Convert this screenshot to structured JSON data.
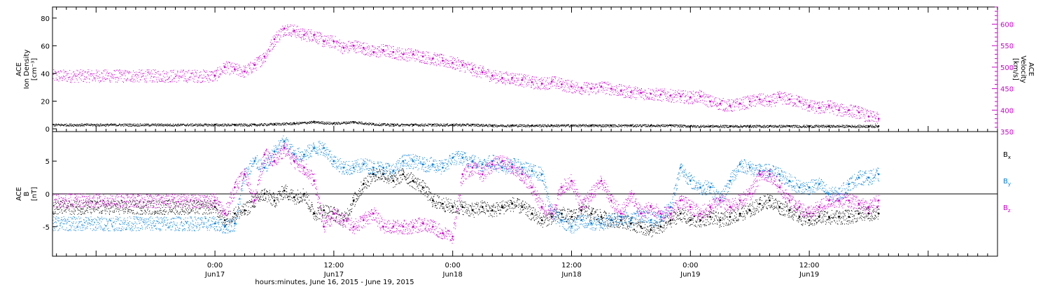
{
  "chart_data": [
    {
      "panel": "top",
      "type": "scatter",
      "left_axis": {
        "label_lines": [
          "ACE",
          "Ion Density",
          "[cm⁻³]"
        ],
        "ylim": [
          -2,
          88
        ],
        "ticks": [
          0,
          20,
          40,
          60,
          80
        ],
        "tick_labels": [
          "0",
          "20",
          "40",
          "60",
          "80"
        ]
      },
      "right_axis": {
        "label_lines": [
          "ACE",
          "Velocity",
          "[km/s]"
        ],
        "ylim": [
          350,
          640
        ],
        "ticks": [
          350,
          400,
          450,
          500,
          550,
          600
        ],
        "tick_labels": [
          "350",
          "400",
          "450",
          "500",
          "550",
          "600"
        ],
        "color": "#d000d0"
      },
      "series": [
        {
          "color": "#d000d0",
          "axis": "right",
          "x": [
            0,
            1,
            2,
            3,
            4,
            5,
            6,
            7,
            8,
            9,
            10,
            11,
            12,
            13,
            14,
            15,
            16,
            17,
            18,
            19,
            20,
            21,
            22,
            23,
            24,
            25,
            26,
            27,
            28,
            29,
            30,
            31,
            32,
            33,
            34,
            35,
            36,
            37,
            38,
            39,
            40,
            41,
            42,
            43,
            44,
            45,
            46,
            47,
            48,
            49,
            50,
            51,
            52,
            53,
            54,
            55,
            56,
            57,
            58,
            59,
            60,
            61,
            62,
            63,
            64,
            65,
            66,
            67
          ],
          "values": [
            480,
            500,
            495,
            490,
            505,
            525,
            565,
            590,
            585,
            575,
            575,
            560,
            560,
            545,
            550,
            545,
            535,
            540,
            535,
            530,
            530,
            525,
            520,
            515,
            510,
            505,
            495,
            488,
            480,
            475,
            475,
            470,
            465,
            462,
            466,
            460,
            455,
            452,
            450,
            455,
            450,
            445,
            442,
            440,
            438,
            436,
            434,
            432,
            430,
            432,
            420,
            415,
            410,
            415,
            420,
            425,
            420,
            430,
            425,
            420,
            410,
            405,
            410,
            400,
            400,
            395,
            385,
            380
          ]
        },
        {
          "color": "#000000",
          "axis": "left",
          "x": [
            0,
            2,
            4,
            6,
            8,
            10,
            12,
            14,
            16,
            18,
            20,
            22,
            24,
            26,
            28,
            30,
            32,
            34,
            36,
            38,
            40,
            42,
            44,
            46,
            48,
            50,
            52,
            54,
            56,
            58,
            60,
            62,
            64,
            66,
            67
          ],
          "values": [
            3,
            3,
            3,
            3.5,
            4,
            5,
            4,
            5,
            3.5,
            3,
            3,
            3,
            3,
            3,
            2.5,
            2.5,
            2.5,
            2.5,
            2.5,
            2.5,
            2.5,
            2.5,
            2.5,
            2.5,
            2,
            2,
            2,
            2,
            2,
            2,
            2,
            2,
            2,
            2,
            2
          ]
        }
      ]
    },
    {
      "panel": "bottom",
      "type": "scatter",
      "left_axis": {
        "label_lines": [
          "ACE",
          "B",
          "[nT]"
        ],
        "ylim": [
          -9.5,
          9.5
        ],
        "ticks": [
          -5,
          0,
          5
        ],
        "tick_labels": [
          "-5",
          "0",
          "5"
        ]
      },
      "legend": {
        "placement": "right",
        "entries": [
          {
            "label": "B",
            "sub": "x",
            "color": "#000000"
          },
          {
            "label": "B",
            "sub": "y",
            "color": "#0080e0"
          },
          {
            "label": "B",
            "sub": "z",
            "color": "#d000d0"
          }
        ]
      },
      "series": [
        {
          "key": "Bx",
          "color": "#000000",
          "x": [
            0,
            1,
            2,
            3,
            4,
            5,
            6,
            7,
            8,
            9,
            10,
            11,
            12,
            13,
            14,
            15,
            16,
            17,
            18,
            19,
            20,
            21,
            22,
            23,
            24,
            25,
            26,
            27,
            28,
            29,
            30,
            31,
            32,
            33,
            34,
            35,
            36,
            37,
            38,
            39,
            40,
            41,
            42,
            43,
            44,
            45,
            46,
            47,
            48,
            49,
            50,
            51,
            52,
            53,
            54,
            55,
            56,
            57,
            58,
            59,
            60,
            61,
            62,
            63,
            64,
            65,
            66,
            67
          ],
          "values": [
            -2,
            -4,
            -3,
            -2.5,
            -1,
            0,
            -1,
            0.5,
            -0.5,
            0,
            -3,
            -2.5,
            -3,
            -4,
            -1,
            1.5,
            3,
            3,
            2,
            3,
            2,
            1,
            -1,
            -1.5,
            -2,
            -2,
            -2.5,
            -2,
            -2.5,
            -2,
            -1.5,
            -2,
            -3,
            -4,
            -3.5,
            -3,
            -3.5,
            -2.5,
            -3,
            -3.5,
            -4,
            -4,
            -4.5,
            -5,
            -5.5,
            -5,
            -4,
            -3,
            -4,
            -4,
            -3.5,
            -4,
            -3.5,
            -3,
            -2.5,
            -1.5,
            -1,
            -2,
            -2.5,
            -3.5,
            -4,
            -3.5,
            -3.5,
            -3.5,
            -3.5,
            -3,
            -3,
            -3
          ]
        },
        {
          "key": "By",
          "color": "#0080e0",
          "x": [
            0,
            1,
            2,
            3,
            4,
            5,
            6,
            7,
            8,
            9,
            10,
            11,
            12,
            13,
            14,
            15,
            16,
            17,
            18,
            19,
            20,
            21,
            22,
            23,
            24,
            25,
            26,
            27,
            28,
            29,
            30,
            31,
            32,
            33,
            34,
            35,
            36,
            37,
            38,
            39,
            40,
            41,
            42,
            43,
            44,
            45,
            46,
            47,
            48,
            49,
            50,
            51,
            52,
            53,
            54,
            55,
            56,
            57,
            58,
            59,
            60,
            61,
            62,
            63,
            64,
            65,
            66,
            67
          ],
          "values": [
            -4.5,
            -5,
            -4.5,
            3,
            5,
            4,
            6.5,
            8,
            6,
            6,
            7,
            7,
            5,
            4,
            4,
            4.5,
            4,
            4,
            3.5,
            5,
            5,
            4.5,
            4.5,
            4,
            5.5,
            5.5,
            5,
            4.5,
            5,
            4,
            4.5,
            4,
            3.5,
            3,
            -3,
            -4,
            -5,
            -4,
            -4.5,
            -4.5,
            -4,
            -3.5,
            -4,
            -3,
            -4,
            -3.5,
            -2,
            4,
            2,
            1,
            1,
            -1,
            2,
            4.5,
            4,
            3.5,
            3.5,
            3,
            2,
            1,
            1,
            1.5,
            0,
            0,
            1.5,
            2.5,
            2.5,
            3
          ]
        },
        {
          "key": "Bz",
          "color": "#d000d0",
          "x": [
            0,
            1,
            2,
            3,
            4,
            5,
            6,
            7,
            8,
            9,
            10,
            11,
            12,
            13,
            14,
            15,
            16,
            17,
            18,
            19,
            20,
            21,
            22,
            23,
            24,
            25,
            26,
            27,
            28,
            29,
            30,
            31,
            32,
            33,
            34,
            35,
            36,
            37,
            38,
            39,
            40,
            41,
            42,
            43,
            44,
            45,
            46,
            47,
            48,
            49,
            50,
            51,
            52,
            53,
            54,
            55,
            56,
            57,
            58,
            59,
            60,
            61,
            62,
            63,
            64,
            65,
            66,
            67
          ],
          "values": [
            -1,
            -3,
            1,
            3,
            -1,
            6,
            5,
            7,
            5,
            4,
            2,
            -5,
            -3,
            -4,
            -5,
            -4,
            -3,
            -5,
            -5,
            -5,
            -5,
            -4.5,
            -5,
            -6,
            -6.5,
            3,
            4,
            3,
            4.5,
            5,
            4,
            3,
            1,
            -2,
            -3,
            1,
            2,
            -2,
            0,
            2,
            -1,
            -3,
            0,
            -3,
            -2,
            -3,
            -3,
            -1,
            -2,
            -3,
            -2,
            -1,
            -2,
            -1,
            0,
            3,
            3,
            1,
            -1,
            -2,
            -3,
            -2,
            -1,
            -1,
            -1,
            -1.5,
            -2,
            -1
          ]
        }
      ]
    }
  ],
  "x_axis": {
    "xlim": [
      -16.4,
      79
    ],
    "ticks": [
      {
        "x": 0,
        "label": "0:00",
        "day": "Jun17"
      },
      {
        "x": 12,
        "label": "12:00",
        "day": "Jun17"
      },
      {
        "x": 24,
        "label": "0:00",
        "day": "Jun18"
      },
      {
        "x": 36,
        "label": "12:00",
        "day": "Jun18"
      },
      {
        "x": 48,
        "label": "0:00",
        "day": "Jun19"
      },
      {
        "x": 60,
        "label": "12:00",
        "day": "Jun19"
      }
    ],
    "label": "hours:minutes, June 16, 2015 - June 19, 2015"
  },
  "styles": {
    "axis_color": "#000000",
    "magenta": "#d000d0",
    "blue": "#0080e0"
  }
}
